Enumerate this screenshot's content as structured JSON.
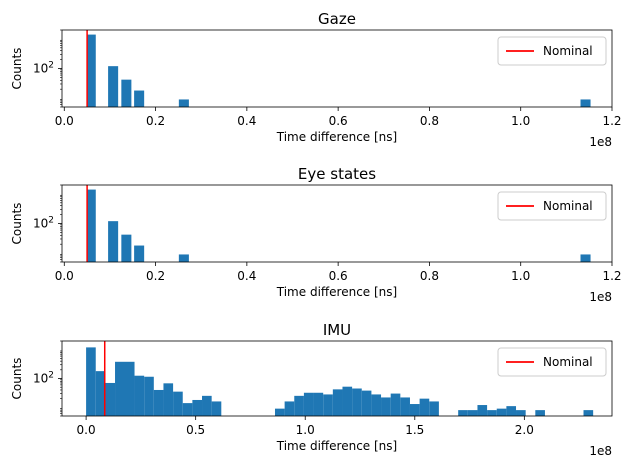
{
  "chart_data": [
    {
      "type": "histogram",
      "title": "Gaze",
      "xlabel": "Time difference [ns]",
      "ylabel": "Counts",
      "xlim": [
        -0.005,
        1.2
      ],
      "x_offset_label": "1e8",
      "x_ticks": [
        {
          "value": 0.0,
          "label": "0.0"
        },
        {
          "value": 0.2,
          "label": "0.2"
        },
        {
          "value": 0.4,
          "label": "0.4"
        },
        {
          "value": 0.6,
          "label": "0.6"
        },
        {
          "value": 0.8,
          "label": "0.8"
        },
        {
          "value": 1.0,
          "label": "1.0"
        },
        {
          "value": 1.2,
          "label": "1.2"
        }
      ],
      "y_scale": "log",
      "ylim": [
        5,
        2000
      ],
      "y_ticks": [
        {
          "value": 100,
          "label": "10^2"
        }
      ],
      "bar_color": "#1f77b4",
      "bins": [
        {
          "x0": 0.05,
          "x1": 0.069,
          "count": 1400
        },
        {
          "x0": 0.096,
          "x1": 0.118,
          "count": 120
        },
        {
          "x0": 0.125,
          "x1": 0.147,
          "count": 42
        },
        {
          "x0": 0.153,
          "x1": 0.175,
          "count": 18
        },
        {
          "x0": 0.251,
          "x1": 0.273,
          "count": 9
        },
        {
          "x0": 1.131,
          "x1": 1.153,
          "count": 9
        }
      ],
      "nominal": {
        "x": 0.05,
        "label": "Nominal",
        "color": "#ff0000"
      },
      "legend": "upper right"
    },
    {
      "type": "histogram",
      "title": "Eye states",
      "xlabel": "Time difference [ns]",
      "ylabel": "Counts",
      "xlim": [
        -0.005,
        1.2
      ],
      "x_offset_label": "1e8",
      "x_ticks": [
        {
          "value": 0.0,
          "label": "0.0"
        },
        {
          "value": 0.2,
          "label": "0.2"
        },
        {
          "value": 0.4,
          "label": "0.4"
        },
        {
          "value": 0.6,
          "label": "0.6"
        },
        {
          "value": 0.8,
          "label": "0.8"
        },
        {
          "value": 1.0,
          "label": "1.0"
        },
        {
          "value": 1.2,
          "label": "1.2"
        }
      ],
      "y_scale": "log",
      "ylim": [
        5,
        2000
      ],
      "y_ticks": [
        {
          "value": 100,
          "label": "10^2"
        }
      ],
      "bar_color": "#1f77b4",
      "bins": [
        {
          "x0": 0.05,
          "x1": 0.069,
          "count": 1400
        },
        {
          "x0": 0.096,
          "x1": 0.118,
          "count": 120
        },
        {
          "x0": 0.125,
          "x1": 0.147,
          "count": 42
        },
        {
          "x0": 0.153,
          "x1": 0.175,
          "count": 18
        },
        {
          "x0": 0.251,
          "x1": 0.273,
          "count": 9
        },
        {
          "x0": 1.131,
          "x1": 1.153,
          "count": 9
        }
      ],
      "nominal": {
        "x": 0.05,
        "label": "Nominal",
        "color": "#ff0000"
      },
      "legend": "upper right"
    },
    {
      "type": "histogram",
      "title": "IMU",
      "xlabel": "Time difference [ns]",
      "ylabel": "Counts",
      "xlim": [
        -0.11,
        2.4
      ],
      "x_offset_label": "1e8",
      "x_ticks": [
        {
          "value": 0.0,
          "label": "0.0"
        },
        {
          "value": 0.5,
          "label": "0.5"
        },
        {
          "value": 1.0,
          "label": "1.0"
        },
        {
          "value": 1.5,
          "label": "1.5"
        },
        {
          "value": 2.0,
          "label": "2.0"
        }
      ],
      "y_scale": "log",
      "ylim": [
        5,
        2000
      ],
      "y_ticks": [
        {
          "value": 100,
          "label": "10^2"
        }
      ],
      "bar_color": "#1f77b4",
      "bins": [
        {
          "x0": 0.0,
          "x1": 0.044,
          "count": 1200
        },
        {
          "x0": 0.044,
          "x1": 0.088,
          "count": 180
        },
        {
          "x0": 0.088,
          "x1": 0.132,
          "count": 70
        },
        {
          "x0": 0.132,
          "x1": 0.221,
          "count": 380
        },
        {
          "x0": 0.221,
          "x1": 0.265,
          "count": 125
        },
        {
          "x0": 0.265,
          "x1": 0.309,
          "count": 115
        },
        {
          "x0": 0.309,
          "x1": 0.353,
          "count": 40
        },
        {
          "x0": 0.353,
          "x1": 0.397,
          "count": 68
        },
        {
          "x0": 0.397,
          "x1": 0.441,
          "count": 35
        },
        {
          "x0": 0.441,
          "x1": 0.485,
          "count": 14
        },
        {
          "x0": 0.485,
          "x1": 0.529,
          "count": 18
        },
        {
          "x0": 0.529,
          "x1": 0.573,
          "count": 25
        },
        {
          "x0": 0.573,
          "x1": 0.617,
          "count": 16
        },
        {
          "x0": 0.862,
          "x1": 0.906,
          "count": 9
        },
        {
          "x0": 0.906,
          "x1": 0.95,
          "count": 16
        },
        {
          "x0": 0.95,
          "x1": 0.994,
          "count": 25
        },
        {
          "x0": 0.994,
          "x1": 1.038,
          "count": 32
        },
        {
          "x0": 1.038,
          "x1": 1.082,
          "count": 32
        },
        {
          "x0": 1.082,
          "x1": 1.126,
          "count": 28
        },
        {
          "x0": 1.126,
          "x1": 1.17,
          "count": 42
        },
        {
          "x0": 1.17,
          "x1": 1.214,
          "count": 52
        },
        {
          "x0": 1.214,
          "x1": 1.258,
          "count": 45
        },
        {
          "x0": 1.258,
          "x1": 1.302,
          "count": 38
        },
        {
          "x0": 1.302,
          "x1": 1.346,
          "count": 28
        },
        {
          "x0": 1.346,
          "x1": 1.39,
          "count": 22
        },
        {
          "x0": 1.39,
          "x1": 1.434,
          "count": 30
        },
        {
          "x0": 1.434,
          "x1": 1.478,
          "count": 22
        },
        {
          "x0": 1.478,
          "x1": 1.522,
          "count": 13
        },
        {
          "x0": 1.522,
          "x1": 1.566,
          "count": 20
        },
        {
          "x0": 1.566,
          "x1": 1.61,
          "count": 16
        },
        {
          "x0": 1.698,
          "x1": 1.742,
          "count": 8
        },
        {
          "x0": 1.742,
          "x1": 1.786,
          "count": 8
        },
        {
          "x0": 1.786,
          "x1": 1.83,
          "count": 12
        },
        {
          "x0": 1.83,
          "x1": 1.874,
          "count": 8
        },
        {
          "x0": 1.874,
          "x1": 1.918,
          "count": 9
        },
        {
          "x0": 1.918,
          "x1": 1.962,
          "count": 11
        },
        {
          "x0": 1.962,
          "x1": 2.006,
          "count": 8
        },
        {
          "x0": 2.05,
          "x1": 2.094,
          "count": 8
        },
        {
          "x0": 2.27,
          "x1": 2.314,
          "count": 8
        }
      ],
      "nominal": {
        "x": 0.085,
        "label": "Nominal",
        "color": "#ff0000"
      },
      "legend": "upper right"
    }
  ]
}
